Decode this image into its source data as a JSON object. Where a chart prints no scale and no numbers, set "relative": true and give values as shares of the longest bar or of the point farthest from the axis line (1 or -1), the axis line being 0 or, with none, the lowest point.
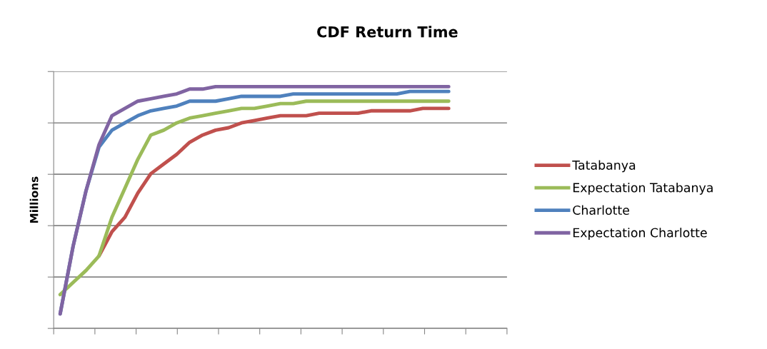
{
  "chart_data": {
    "type": "line",
    "title": "CDF Return Time",
    "ylabel": "Millions",
    "relative": true,
    "grid": "y",
    "legend": "right",
    "marker": "none",
    "line_style": "solid",
    "categories": [
      null,
      null,
      null,
      null,
      null,
      null,
      null,
      null,
      null,
      null,
      null,
      null,
      null,
      null,
      null,
      null,
      null,
      null,
      null,
      null,
      null,
      null,
      null,
      null,
      null,
      null,
      null,
      null,
      null,
      null,
      null,
      null,
      null,
      null,
      null
    ],
    "series": [
      {
        "name": "Tatabanya",
        "color": "#c0504d",
        "values": [
          null,
          null,
          null,
          0.3,
          0.4,
          0.46,
          0.56,
          0.64,
          0.68,
          0.72,
          0.77,
          0.8,
          0.82,
          0.83,
          0.85,
          0.86,
          0.87,
          0.88,
          0.88,
          0.88,
          0.89,
          0.89,
          0.89,
          0.89,
          0.9,
          0.9,
          0.9,
          0.9,
          0.91,
          0.91,
          0.91,
          null,
          null,
          null,
          null
        ]
      },
      {
        "name": "Expectation Tatabanya",
        "color": "#9bbb59",
        "values": [
          0.14,
          0.19,
          0.24,
          0.3,
          0.46,
          0.58,
          0.7,
          0.8,
          0.82,
          0.85,
          0.87,
          0.88,
          0.89,
          0.9,
          0.91,
          0.91,
          0.92,
          0.93,
          0.93,
          0.94,
          0.94,
          0.94,
          0.94,
          0.94,
          0.94,
          0.94,
          0.94,
          0.94,
          0.94,
          0.94,
          0.94,
          null,
          null,
          null,
          null
        ]
      },
      {
        "name": "Charlotte",
        "color": "#4f81bd",
        "values": [
          0.06,
          0.34,
          0.57,
          0.75,
          0.82,
          0.85,
          0.88,
          0.9,
          0.91,
          0.92,
          0.94,
          0.94,
          0.94,
          0.95,
          0.96,
          0.96,
          0.96,
          0.96,
          0.97,
          0.97,
          0.97,
          0.97,
          0.97,
          0.97,
          0.97,
          0.97,
          0.97,
          0.98,
          0.98,
          0.98,
          0.98,
          null,
          null,
          null,
          null
        ]
      },
      {
        "name": "Expectation Charlotte",
        "color": "#8064a2",
        "values": [
          0.06,
          0.34,
          0.57,
          0.76,
          0.88,
          0.91,
          0.94,
          0.95,
          0.96,
          0.97,
          0.99,
          0.99,
          1.0,
          1,
          1,
          1,
          1,
          1,
          1,
          1,
          1,
          1,
          1,
          1,
          1,
          1,
          1,
          1,
          1,
          1,
          1,
          null,
          null,
          null,
          null
        ]
      }
    ]
  }
}
